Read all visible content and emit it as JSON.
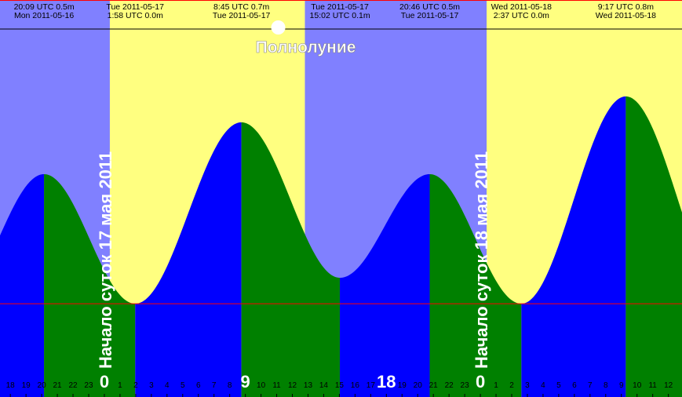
{
  "chart_data": {
    "type": "tide",
    "extremes": {
      "times": [
        "20:09 UTC",
        "1:58 UTC",
        "8:45 UTC",
        "15:02 UTC",
        "20:46 UTC",
        "2:37 UTC",
        "9:17 UTC"
      ],
      "dates": [
        "Mon 2011-05-16",
        "Tue 2011-05-17",
        "Tue 2011-05-17",
        "Tue 2011-05-17",
        "Tue 2011-05-17",
        "Wed 2011-05-18",
        "Wed 2011-05-18"
      ],
      "values": [
        0.5,
        0.0,
        0.7,
        0.1,
        0.5,
        0.0,
        0.8
      ],
      "value_labels": [
        "0.5m",
        "0.0m",
        "0.7m",
        "0.1m",
        "0.5m",
        "0.0m",
        "0.8m"
      ]
    },
    "day_starts": [
      {
        "x": 24,
        "label": "Начало суток 17 мая 2011"
      },
      {
        "x": 48,
        "label": "Начало суток 18 мая 2011"
      }
    ],
    "moon": {
      "x": 35.1,
      "label": "Полнолуние"
    },
    "daylight": [
      [
        24.35,
        36.8
      ],
      [
        48.4,
        60.87
      ]
    ],
    "xlim": [
      17.34,
      60.87
    ],
    "ylim": [
      -0.36,
      1.06
    ],
    "xticks": [
      18,
      19,
      20,
      21,
      22,
      23,
      {
        "value": 24,
        "label": "0",
        "major": true
      },
      {
        "value": 25,
        "label": "1"
      },
      {
        "value": 26,
        "label": "2"
      },
      {
        "value": 27,
        "label": "3"
      },
      {
        "value": 28,
        "label": "4"
      },
      {
        "value": 29,
        "label": "5"
      },
      {
        "value": 30,
        "label": "6"
      },
      {
        "value": 31,
        "label": "7"
      },
      {
        "value": 32,
        "label": "8"
      },
      {
        "value": 33,
        "label": "9",
        "major": true
      },
      {
        "value": 34,
        "label": "10"
      },
      {
        "value": 35,
        "label": "11"
      },
      {
        "value": 36,
        "label": "12"
      },
      {
        "value": 37,
        "label": "13"
      },
      {
        "value": 38,
        "label": "14"
      },
      {
        "value": 39,
        "label": "15"
      },
      {
        "value": 40,
        "label": "16"
      },
      {
        "value": 41,
        "label": "17"
      },
      {
        "value": 42,
        "label": "18",
        "major": true
      },
      {
        "value": 43,
        "label": "19"
      },
      {
        "value": 44,
        "label": "20"
      },
      {
        "value": 45,
        "label": "21"
      },
      {
        "value": 46,
        "label": "22"
      },
      {
        "value": 47,
        "label": "23"
      },
      {
        "value": 48,
        "label": "0",
        "major": true
      },
      {
        "value": 49,
        "label": "1"
      },
      {
        "value": 50,
        "label": "2"
      },
      {
        "value": 51,
        "label": "3"
      },
      {
        "value": 52,
        "label": "4"
      },
      {
        "value": 53,
        "label": "5"
      },
      {
        "value": 54,
        "label": "6"
      },
      {
        "value": 55,
        "label": "7"
      },
      {
        "value": 56,
        "label": "8"
      },
      {
        "value": 57,
        "label": "9"
      },
      {
        "value": 58,
        "label": "10"
      },
      {
        "value": 59,
        "label": "11"
      },
      {
        "value": 60,
        "label": "12"
      }
    ],
    "colors": {
      "night": "#8080ff",
      "day": "#ffff80",
      "rising": "#0000ff",
      "falling": "#008000",
      "datum": "#ff0000"
    }
  }
}
